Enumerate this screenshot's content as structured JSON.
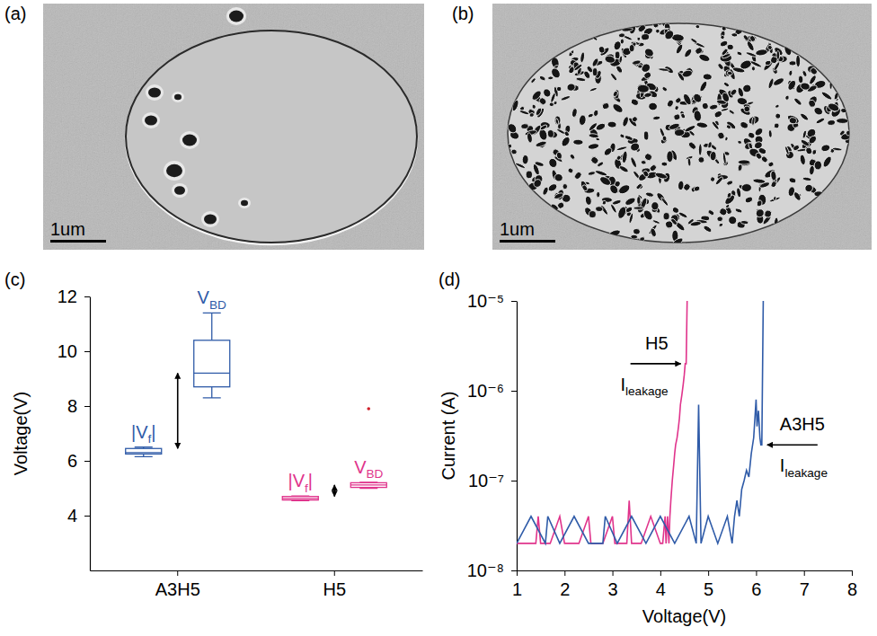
{
  "images": [
    {
      "label": "(a)",
      "scale_bar": "1um"
    },
    {
      "label": "(b)",
      "scale_bar": "1um"
    }
  ],
  "chart_data": [
    {
      "label": "(c)",
      "type": "box",
      "ylabel": "Voltage(V)",
      "categories": [
        "A3H5",
        "H5"
      ],
      "ylim": [
        2,
        12
      ],
      "yticks": [
        4,
        6,
        8,
        10,
        12
      ],
      "series": [
        {
          "color": "#2f5ba8",
          "boxes": [
            {
              "label": "|Vf|",
              "whislo": 6.15,
              "q1": 6.25,
              "median": 6.3,
              "q3": 6.45,
              "whishi": 6.5,
              "outliers": []
            },
            {
              "label": "VBD",
              "whislo": 8.3,
              "q1": 8.7,
              "median": 9.2,
              "q3": 10.4,
              "whishi": 11.4,
              "outliers": []
            }
          ]
        },
        {
          "color": "#e0348c",
          "boxes": [
            {
              "label": "|Vf|",
              "whislo": 4.55,
              "q1": 4.57,
              "median": 4.63,
              "q3": 4.7,
              "whishi": 4.72,
              "outliers": []
            },
            {
              "label": "VBD",
              "whislo": 5.0,
              "q1": 5.03,
              "median": 5.12,
              "q3": 5.2,
              "whishi": 5.22,
              "outliers": [
                7.9
              ]
            }
          ]
        }
      ]
    },
    {
      "label": "(d)",
      "type": "line",
      "xlabel": "Voltage(V)",
      "ylabel": "Current (A)",
      "log": "y",
      "xlim": [
        1,
        8
      ],
      "xticks": [
        1,
        2,
        3,
        4,
        5,
        6,
        7,
        8
      ],
      "ylim": [
        1e-08,
        1e-05
      ],
      "yticks": [
        {
          "value": 1e-08,
          "label": "10⁻⁸"
        },
        {
          "value": 1e-07,
          "label": "10⁻⁷"
        },
        {
          "value": 1e-06,
          "label": "10⁻⁶"
        },
        {
          "value": 1e-05,
          "label": "10⁻⁵"
        }
      ],
      "series": [
        {
          "name": "H5",
          "color": "#e0348c",
          "annotation": "Ileakage",
          "x": [
            1.0,
            1.2,
            1.4,
            1.45,
            1.5,
            1.7,
            1.9,
            2.0,
            2.1,
            2.3,
            2.5,
            2.55,
            2.6,
            2.8,
            3.0,
            3.05,
            3.1,
            3.3,
            3.35,
            3.4,
            3.6,
            3.8,
            4.0,
            4.05,
            4.1,
            4.12,
            4.15,
            4.18,
            4.2,
            4.22,
            4.25,
            4.28,
            4.3,
            4.32,
            4.35,
            4.38,
            4.4,
            4.42,
            4.45,
            4.48,
            4.5,
            4.52,
            4.54,
            4.56
          ],
          "values": [
            2e-08,
            2e-08,
            2e-08,
            4e-08,
            2e-08,
            2e-08,
            4e-08,
            2e-08,
            2e-08,
            2e-08,
            4e-08,
            2e-08,
            2e-08,
            2e-08,
            4e-08,
            2e-08,
            2e-08,
            2e-08,
            6e-08,
            2e-08,
            2e-08,
            4e-08,
            2e-08,
            2e-08,
            4e-08,
            2e-08,
            4e-08,
            2e-08,
            4e-08,
            6e-08,
            1e-07,
            1.5e-07,
            2e-07,
            2.5e-07,
            3e-07,
            4e-07,
            5e-07,
            7e-07,
            9e-07,
            1.2e-06,
            1.5e-06,
            2e-06,
            2e-06,
            1e-05
          ]
        },
        {
          "name": "A3H5",
          "color": "#2f5ba8",
          "annotation": "Ileakage",
          "x": [
            1.0,
            1.3,
            1.6,
            1.65,
            1.9,
            2.2,
            2.5,
            2.8,
            2.85,
            3.1,
            3.4,
            3.7,
            4.0,
            4.3,
            4.6,
            4.75,
            4.8,
            4.85,
            5.0,
            5.2,
            5.4,
            5.5,
            5.55,
            5.6,
            5.65,
            5.7,
            5.75,
            5.8,
            5.85,
            5.9,
            5.95,
            6.0,
            6.02,
            6.05,
            6.08,
            6.1,
            6.12,
            6.15
          ],
          "values": [
            2e-08,
            4e-08,
            2e-08,
            4e-08,
            2e-08,
            4e-08,
            2e-08,
            2e-08,
            4e-08,
            2e-08,
            4e-08,
            2e-08,
            4e-08,
            2e-08,
            4e-08,
            2e-08,
            7e-07,
            2e-08,
            4e-08,
            2e-08,
            4e-08,
            2e-08,
            4e-08,
            6e-08,
            4e-08,
            8e-08,
            1e-07,
            1.3e-07,
            1.1e-07,
            2e-07,
            3e-07,
            8e-07,
            4e-07,
            6e-07,
            3e-07,
            2.5e-07,
            2.5e-07,
            1e-05
          ]
        }
      ]
    }
  ]
}
